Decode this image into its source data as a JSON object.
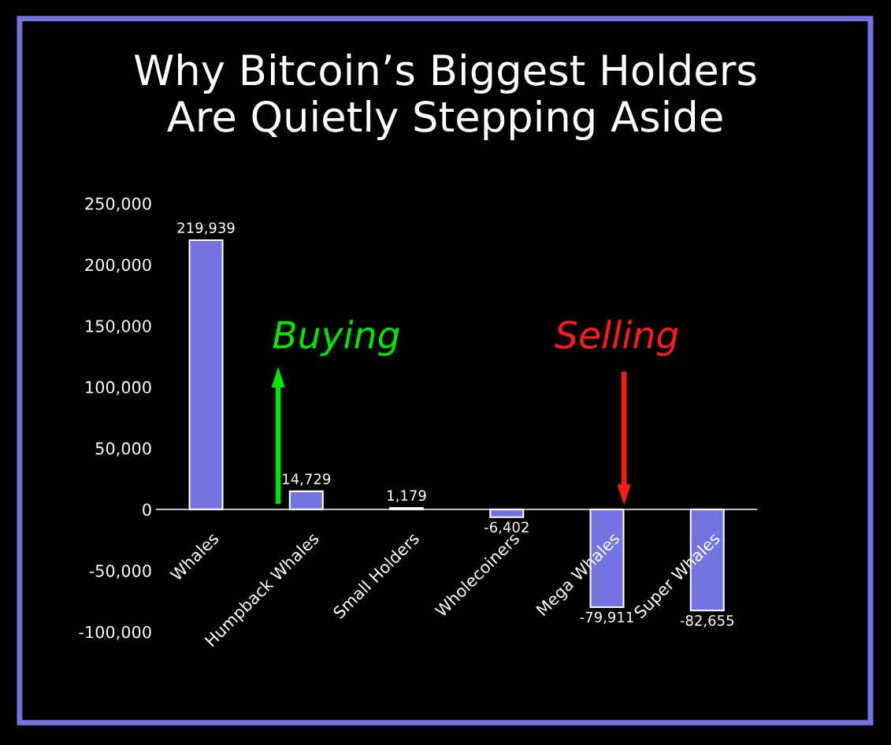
{
  "chart_data": {
    "type": "bar",
    "title": "Why Bitcoin’s Biggest Holders\nAre Quietly Stepping Aside",
    "categories": [
      "Whales",
      "Humpback Whales",
      "Small Holders",
      "Wholecoiners",
      "Mega Whales",
      "Super Whales"
    ],
    "values": [
      219939,
      14729,
      1179,
      -6402,
      -79911,
      -82655
    ],
    "color": "#7073e0",
    "ylim": [
      -100000,
      250000
    ],
    "yticks": [
      {
        "value": -100000,
        "label": "-100,000"
      },
      {
        "value": -50000,
        "label": "-50,000"
      },
      {
        "value": 0,
        "label": "0"
      },
      {
        "value": 50000,
        "label": "50,000"
      },
      {
        "value": 100000,
        "label": "100,000"
      },
      {
        "value": 150000,
        "label": "150,000"
      },
      {
        "value": 200000,
        "label": "200,000"
      },
      {
        "value": 250000,
        "label": "250,000"
      }
    ],
    "value_labels": [
      "219,939",
      "14,729",
      "1,179",
      "-6,402",
      "-79,911",
      "-82,655"
    ],
    "grid": false,
    "annotations": [
      "Buying",
      "Selling"
    ]
  }
}
